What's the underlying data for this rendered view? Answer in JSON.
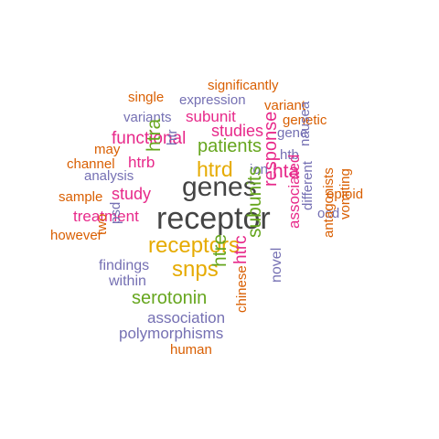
{
  "words": [
    {
      "text": "significantly",
      "color": "#d95f02",
      "rotated": false
    },
    {
      "text": "single",
      "color": "#d95f02",
      "rotated": false
    },
    {
      "text": "expression",
      "color": "#7570b3",
      "rotated": false
    },
    {
      "text": "variant",
      "color": "#d95f02",
      "rotated": false
    },
    {
      "text": "variants",
      "color": "#7570b3",
      "rotated": false
    },
    {
      "text": "subunit",
      "color": "#e7298a",
      "rotated": false
    },
    {
      "text": "genetic",
      "color": "#d95f02",
      "rotated": false
    },
    {
      "text": "studies",
      "color": "#e7298a",
      "rotated": false
    },
    {
      "text": "gene",
      "color": "#7570b3",
      "rotated": false
    },
    {
      "text": "functional",
      "color": "#e7298a",
      "rotated": false
    },
    {
      "text": "patients",
      "color": "#66a61e",
      "rotated": false
    },
    {
      "text": "htr",
      "color": "#7570b3",
      "rotated": true
    },
    {
      "text": "may",
      "color": "#d95f02",
      "rotated": false
    },
    {
      "text": "htb",
      "color": "#7570b3",
      "rotated": false
    },
    {
      "text": "channel",
      "color": "#d95f02",
      "rotated": false
    },
    {
      "text": "htrb",
      "color": "#e7298a",
      "rotated": false
    },
    {
      "text": "htra",
      "color": "#66a61e",
      "rotated": true
    },
    {
      "text": "htrd",
      "color": "#e6ab02",
      "rotated": false
    },
    {
      "text": "ion",
      "color": "#7570b3",
      "rotated": false
    },
    {
      "text": "hta",
      "color": "#e7298a",
      "rotated": false
    },
    {
      "text": "nausea",
      "color": "#7570b3",
      "rotated": true
    },
    {
      "text": "analysis",
      "color": "#7570b3",
      "rotated": false
    },
    {
      "text": "sample",
      "color": "#d95f02",
      "rotated": false
    },
    {
      "text": "study",
      "color": "#e7298a",
      "rotated": false
    },
    {
      "text": "genes",
      "color": "#444444",
      "rotated": false
    },
    {
      "text": "opioid",
      "color": "#d95f02",
      "rotated": false
    },
    {
      "text": "response",
      "color": "#e7298a",
      "rotated": true
    },
    {
      "text": "treatment",
      "color": "#e7298a",
      "rotated": false
    },
    {
      "text": "ocd",
      "color": "#7570b3",
      "rotated": false
    },
    {
      "text": "receptor",
      "color": "#444444",
      "rotated": false
    },
    {
      "text": "different",
      "color": "#7570b3",
      "rotated": true
    },
    {
      "text": "however",
      "color": "#d95f02",
      "rotated": false
    },
    {
      "text": "two",
      "color": "#d95f02",
      "rotated": true
    },
    {
      "text": "psd",
      "color": "#7570b3",
      "rotated": true
    },
    {
      "text": "receptors",
      "color": "#e6ab02",
      "rotated": false
    },
    {
      "text": "associated",
      "color": "#e7298a",
      "rotated": true
    },
    {
      "text": "antagonists",
      "color": "#d95f02",
      "rotated": true
    },
    {
      "text": "vomiting",
      "color": "#d95f02",
      "rotated": true
    },
    {
      "text": "subunits",
      "color": "#66a61e",
      "rotated": true
    },
    {
      "text": "findings",
      "color": "#7570b3",
      "rotated": false
    },
    {
      "text": "snps",
      "color": "#e6ab02",
      "rotated": false
    },
    {
      "text": "within",
      "color": "#7570b3",
      "rotated": false
    },
    {
      "text": "htre",
      "color": "#66a61e",
      "rotated": true
    },
    {
      "text": "htrc",
      "color": "#e7298a",
      "rotated": true
    },
    {
      "text": "novel",
      "color": "#7570b3",
      "rotated": true
    },
    {
      "text": "serotonin",
      "color": "#66a61e",
      "rotated": false
    },
    {
      "text": "association",
      "color": "#7570b3",
      "rotated": false
    },
    {
      "text": "chinese",
      "color": "#d95f02",
      "rotated": true
    },
    {
      "text": "polymorphisms",
      "color": "#7570b3",
      "rotated": false
    },
    {
      "text": "human",
      "color": "#d95f02",
      "rotated": false
    }
  ]
}
